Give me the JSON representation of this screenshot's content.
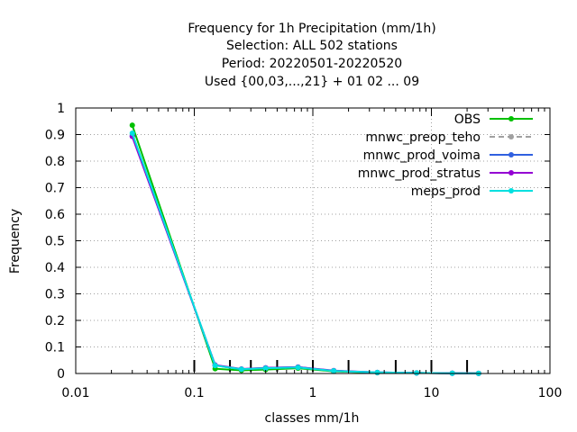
{
  "chart_data": {
    "type": "line",
    "title_lines": [
      "Frequency  for 1h Precipitation (mm/1h)",
      "Selection: ALL    502 stations",
      "Period: 20220501-20220520",
      "Used {00,03,...,21} + 01 02 ... 09"
    ],
    "xlabel": "classes mm/1h",
    "ylabel": "Frequency",
    "xscale": "log",
    "xlim": [
      0.01,
      100
    ],
    "ylim": [
      0,
      1
    ],
    "grid": true,
    "legend_position": "top-right",
    "x_ticks": [
      0.01,
      0.1,
      1,
      10,
      100
    ],
    "x_tick_labels": [
      "0.01",
      "0.1",
      "1",
      "10",
      "100"
    ],
    "y_ticks": [
      0,
      0.1,
      0.2,
      0.3,
      0.4,
      0.5,
      0.6,
      0.7,
      0.8,
      0.9,
      1
    ],
    "y_tick_labels": [
      "0",
      "0.1",
      "0.2",
      "0.3",
      "0.4",
      "0.5",
      "0.6",
      "0.7",
      "0.8",
      "0.9",
      "1"
    ],
    "class_boundaries": [
      0.1,
      0.2,
      0.3,
      0.5,
      1,
      2,
      5,
      10,
      20
    ],
    "x": [
      0.03,
      0.15,
      0.25,
      0.4,
      0.75,
      1.5,
      3.5,
      7.5,
      15,
      25
    ],
    "series": [
      {
        "name": "OBS",
        "color": "#00c000",
        "style": "solid",
        "values": [
          0.935,
          0.018,
          0.012,
          0.015,
          0.02,
          0.008,
          0.003,
          0.002,
          0.001,
          0.0005
        ]
      },
      {
        "name": "mnwc_preop_teho",
        "color": "#a0a0a0",
        "style": "dashed",
        "values": [
          0.9,
          0.03,
          0.016,
          0.02,
          0.023,
          0.01,
          0.004,
          0.002,
          0.001,
          0.0005
        ]
      },
      {
        "name": "mnwc_prod_voima",
        "color": "#3060e0",
        "style": "solid",
        "values": [
          0.895,
          0.031,
          0.016,
          0.021,
          0.024,
          0.01,
          0.004,
          0.002,
          0.001,
          0.0005
        ]
      },
      {
        "name": "mnwc_prod_stratus",
        "color": "#9400d3",
        "style": "solid",
        "values": [
          0.893,
          0.032,
          0.017,
          0.021,
          0.024,
          0.011,
          0.004,
          0.002,
          0.001,
          0.0005
        ]
      },
      {
        "name": "meps_prod",
        "color": "#00e0e0",
        "style": "solid",
        "values": [
          0.905,
          0.03,
          0.016,
          0.02,
          0.023,
          0.01,
          0.004,
          0.002,
          0.001,
          0.0005
        ]
      }
    ]
  }
}
